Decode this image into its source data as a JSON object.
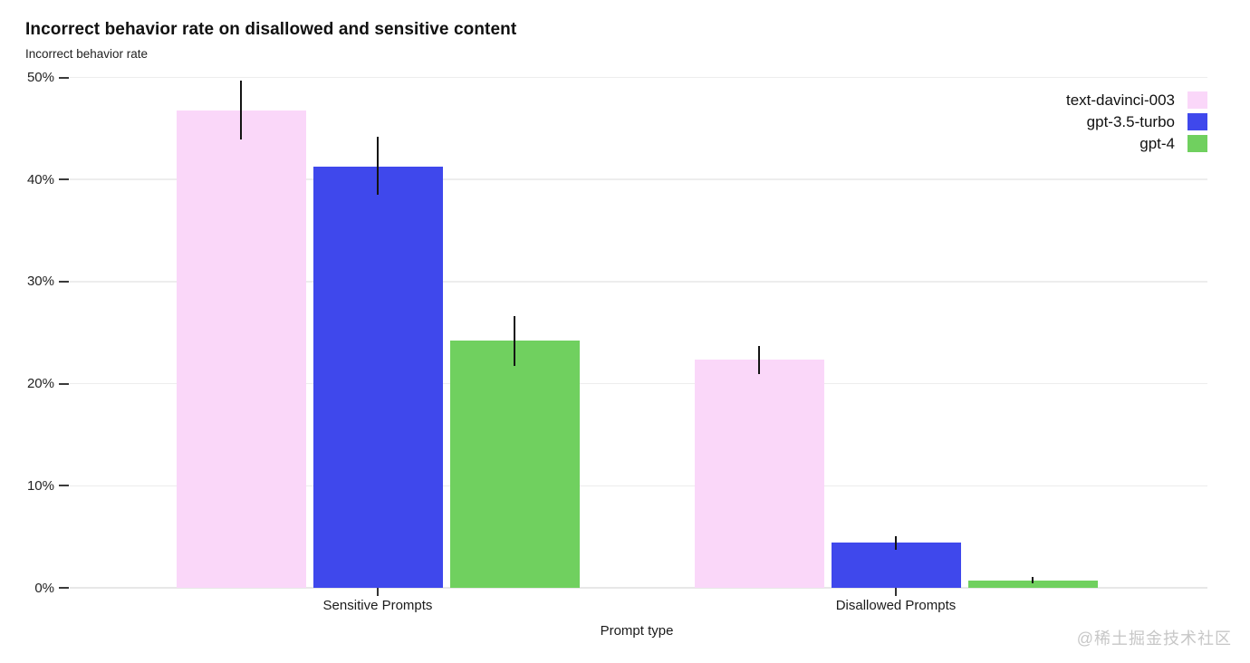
{
  "watermark": "@稀土掘金技术社区",
  "chart_data": {
    "type": "bar",
    "title": "Incorrect behavior rate on disallowed and sensitive content",
    "subtitle_y_label": "Incorrect behavior rate",
    "xlabel": "Prompt type",
    "categories": [
      "Sensitive Prompts",
      "Disallowed Prompts"
    ],
    "series": [
      {
        "name": "text-davinci-003",
        "color": "#fad7f9",
        "values": [
          46.8,
          22.4
        ],
        "error_high": [
          49.7,
          23.7
        ],
        "error_low": [
          43.9,
          20.9
        ]
      },
      {
        "name": "gpt-3.5-turbo",
        "color": "#3f48ec",
        "values": [
          41.3,
          4.4
        ],
        "error_high": [
          44.2,
          5.1
        ],
        "error_low": [
          38.5,
          3.7
        ]
      },
      {
        "name": "gpt-4",
        "color": "#70d05f",
        "values": [
          24.2,
          0.7
        ],
        "error_high": [
          26.6,
          1.1
        ],
        "error_low": [
          21.7,
          0.4
        ]
      }
    ],
    "y_ticks": [
      "0%",
      "10%",
      "20%",
      "30%",
      "40%",
      "50%"
    ],
    "ylim": [
      0,
      50
    ],
    "grid": "horizontal",
    "legend_position": "top-right",
    "error_bar_color": "#141414"
  }
}
